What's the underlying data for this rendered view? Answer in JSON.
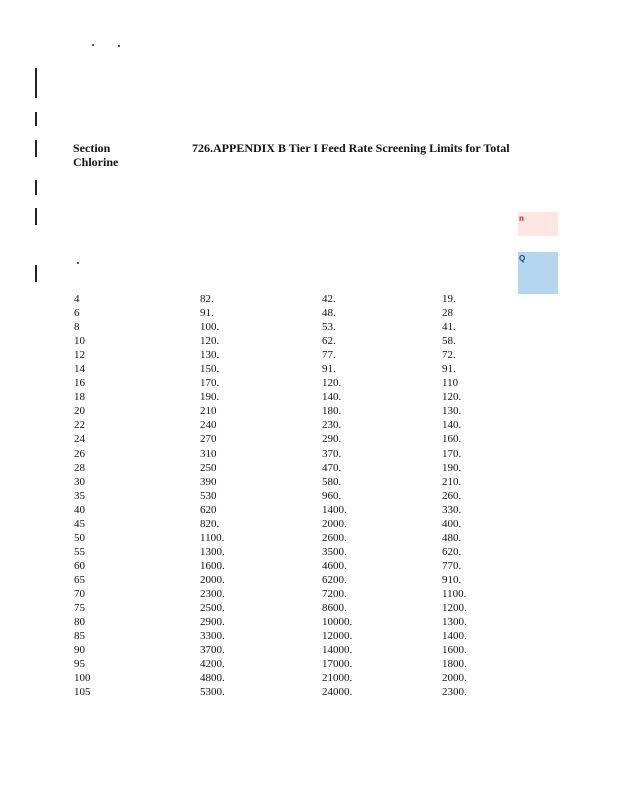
{
  "header": {
    "section_label": "Section",
    "title": "726.APPENDIX B   Tier I Feed Rate Screening Limits for Total",
    "title_continuation": "Chlorine"
  },
  "margin_marks": {
    "pink_label": "n",
    "blue_label": "Q",
    "pink_color": "#fbe6e2",
    "blue_color": "#b4d6ee"
  },
  "table": {
    "rows": [
      [
        "4",
        "82.",
        "42.",
        "19."
      ],
      [
        "6",
        "91.",
        "48.",
        "28"
      ],
      [
        "8",
        "100.",
        "53.",
        "41."
      ],
      [
        "10",
        "120.",
        "62.",
        "58."
      ],
      [
        "12",
        "130.",
        "77.",
        "72."
      ],
      [
        "14",
        "150.",
        "91.",
        "91."
      ],
      [
        "16",
        "170.",
        "120.",
        "110"
      ],
      [
        "18",
        "190.",
        "140.",
        "120."
      ],
      [
        "20",
        "210",
        "180.",
        "130."
      ],
      [
        "22",
        "240",
        "230.",
        "140."
      ],
      [
        "24",
        "270",
        "290.",
        "160."
      ],
      [
        "26",
        "310",
        "370.",
        "170."
      ],
      [
        "28",
        "250",
        "470.",
        "190."
      ],
      [
        "30",
        "390",
        "580.",
        "210."
      ],
      [
        "35",
        "530",
        "960.",
        "260."
      ],
      [
        "40",
        "620",
        "1400.",
        "330."
      ],
      [
        "45",
        "820.",
        "2000.",
        "400."
      ],
      [
        "50",
        "1100.",
        "2600.",
        "480."
      ],
      [
        "55",
        "1300.",
        "3500.",
        "620."
      ],
      [
        "60",
        "1600.",
        "4600.",
        "770."
      ],
      [
        "65",
        "2000.",
        "6200.",
        "910."
      ],
      [
        "70",
        "2300.",
        "7200.",
        "1100."
      ],
      [
        "75",
        "2500.",
        "8600.",
        "1200."
      ],
      [
        "80",
        "2900.",
        "10000.",
        "1300."
      ],
      [
        "85",
        "3300.",
        "12000.",
        "1400."
      ],
      [
        "90",
        "3700.",
        "14000.",
        "1600."
      ],
      [
        "95",
        "4200.",
        "17000.",
        "1800."
      ],
      [
        "100",
        "4800.",
        "21000.",
        "2000."
      ],
      [
        "105",
        "5300.",
        "24000.",
        "2300."
      ]
    ]
  }
}
